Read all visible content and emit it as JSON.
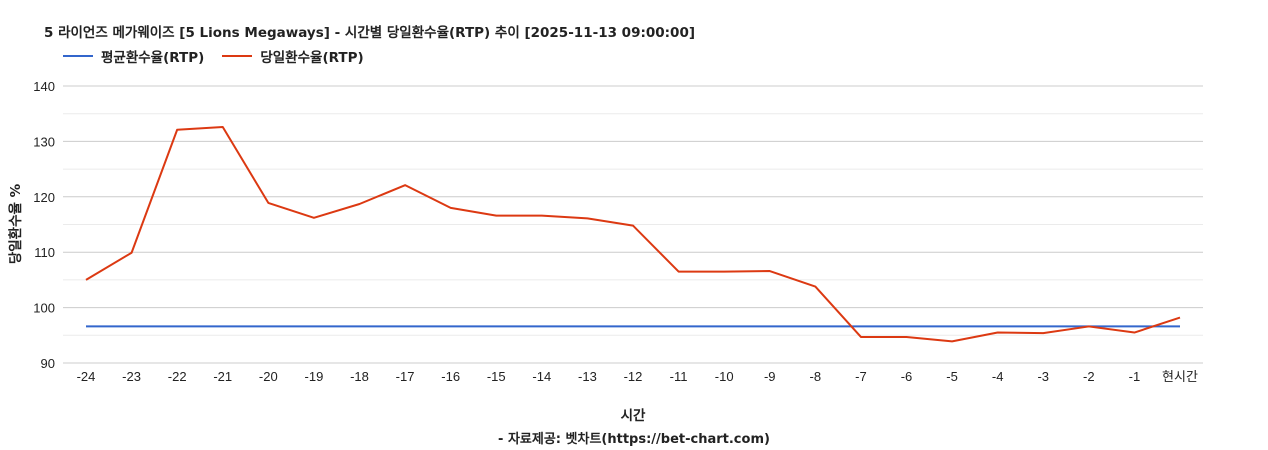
{
  "chart_data": {
    "type": "line",
    "title": "5 라이언즈 메가웨이즈 [5 Lions Megaways] - 시간별 당일환수율(RTP) 추이 [2025-11-13 09:00:00]",
    "xlabel": "시간",
    "ylabel": "당일환수율 %",
    "source": "- 자료제공: 벳차트(https://bet-chart.com)",
    "categories": [
      "-24",
      "-23",
      "-22",
      "-21",
      "-20",
      "-19",
      "-18",
      "-17",
      "-16",
      "-15",
      "-14",
      "-13",
      "-12",
      "-11",
      "-10",
      "-9",
      "-8",
      "-7",
      "-6",
      "-5",
      "-4",
      "-3",
      "-2",
      "-1",
      "현시간"
    ],
    "ylim": [
      90,
      140
    ],
    "yticks": [
      90,
      100,
      110,
      120,
      130,
      140
    ],
    "grid": true,
    "legend": "top-left",
    "series": [
      {
        "name": "평균환수율(RTP)",
        "color": "#3366cc",
        "values": [
          96.6,
          96.6,
          96.6,
          96.6,
          96.6,
          96.6,
          96.6,
          96.6,
          96.6,
          96.6,
          96.6,
          96.6,
          96.6,
          96.6,
          96.6,
          96.6,
          96.6,
          96.6,
          96.6,
          96.6,
          96.6,
          96.6,
          96.6,
          96.6,
          96.6
        ]
      },
      {
        "name": "당일환수율(RTP)",
        "color": "#dc3912",
        "values": [
          105.0,
          109.9,
          132.1,
          132.6,
          118.9,
          116.2,
          118.7,
          122.1,
          118.0,
          116.6,
          116.6,
          116.1,
          114.8,
          106.5,
          106.5,
          106.6,
          103.8,
          94.7,
          94.7,
          93.9,
          95.5,
          95.4,
          96.6,
          95.5,
          98.2
        ]
      }
    ]
  }
}
